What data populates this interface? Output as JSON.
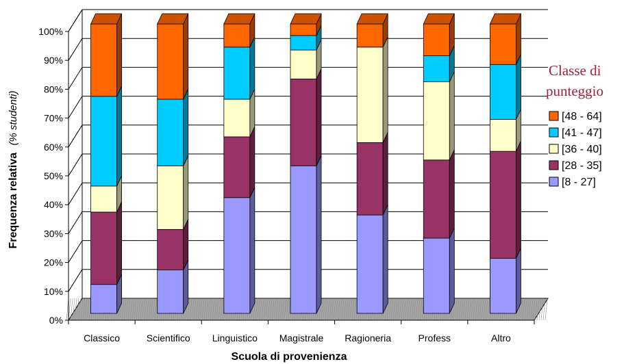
{
  "chart_data": {
    "type": "bar",
    "stacked": true,
    "percent_stacked": true,
    "three_d": true,
    "categories": [
      "Classico",
      "Scientifico",
      "Linguistico",
      "Magistrale",
      "Ragioneria",
      "Profess",
      "Altro"
    ],
    "series": [
      {
        "name": "[8 - 27]",
        "color": "#9999ff",
        "values": [
          10,
          15,
          40,
          51,
          34,
          26,
          19
        ]
      },
      {
        "name": "[28 - 35]",
        "color": "#993366",
        "values": [
          25,
          14,
          21,
          30,
          25,
          27,
          37
        ]
      },
      {
        "name": "[36 - 40]",
        "color": "#ffffcc",
        "values": [
          9,
          22,
          13,
          10,
          33,
          27,
          11
        ]
      },
      {
        "name": "[41 - 47]",
        "color": "#00ccff",
        "values": [
          31,
          23,
          18,
          5,
          0,
          9,
          19
        ]
      },
      {
        "name": "[48 - 64]",
        "color": "#ff6600",
        "values": [
          25,
          26,
          8,
          4,
          8,
          11,
          14
        ]
      }
    ],
    "ylim": [
      0,
      100
    ],
    "yticks": [
      "0%",
      "10%",
      "20%",
      "30%",
      "40%",
      "50%",
      "60%",
      "70%",
      "80%",
      "90%",
      "100%"
    ],
    "ylabel": "Frequenza relativa",
    "ylabel_note": "(% studenti)",
    "xlabel": "Scuola di provenienza",
    "legend_title": "Classe di punteggio",
    "legend_title_lines": [
      "Classe di",
      "punteggio"
    ],
    "legend_placement": "right",
    "grid": true
  }
}
